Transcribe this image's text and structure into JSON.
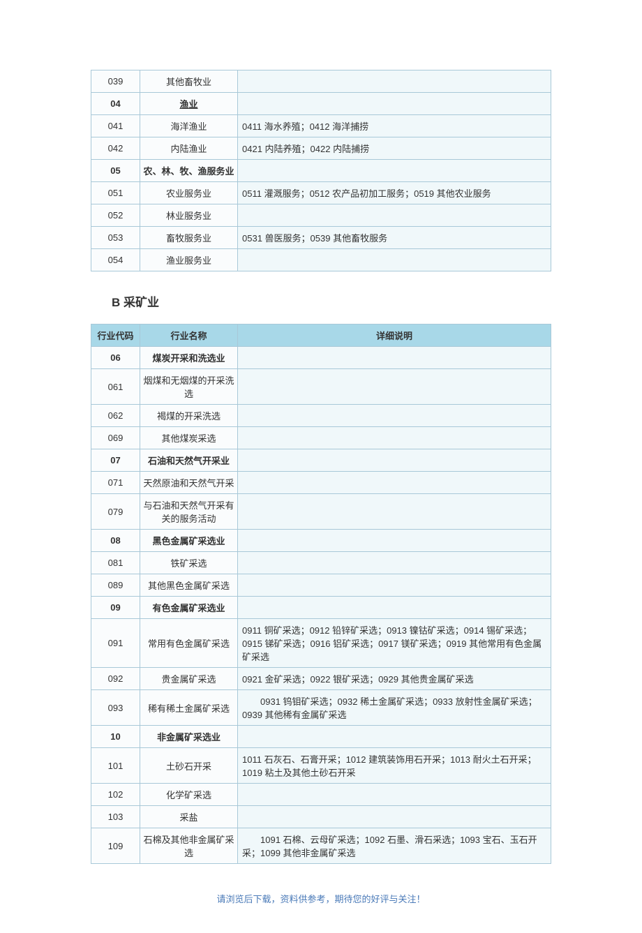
{
  "table1": {
    "rows": [
      {
        "code": "039",
        "name": "其他畜牧业",
        "desc": "",
        "section": false
      },
      {
        "code": "04",
        "name": "渔业",
        "desc": "",
        "section": true,
        "underline": true
      },
      {
        "code": "041",
        "name": "海洋渔业",
        "desc": "0411 海水养殖；0412 海洋捕捞",
        "section": false
      },
      {
        "code": "042",
        "name": "内陆渔业",
        "desc": "0421 内陆养殖；0422 内陆捕捞",
        "section": false
      },
      {
        "code": "05",
        "name": "农、林、牧、渔服务业",
        "desc": "",
        "section": true
      },
      {
        "code": "051",
        "name": "农业服务业",
        "desc": "0511 灌溉服务；0512 农产品初加工服务；0519 其他农业服务",
        "section": false
      },
      {
        "code": "052",
        "name": "林业服务业",
        "desc": "",
        "section": false
      },
      {
        "code": "053",
        "name": "畜牧服务业",
        "desc": "0531 兽医服务；0539 其他畜牧服务",
        "section": false
      },
      {
        "code": "054",
        "name": "渔业服务业",
        "desc": "",
        "section": false
      }
    ]
  },
  "heading_b": "B 采矿业",
  "table2": {
    "headers": {
      "code": "行业代码",
      "name": "行业名称",
      "desc": "详细说明"
    },
    "rows": [
      {
        "code": "06",
        "name": "煤炭开采和洗选业",
        "desc": "",
        "section": true
      },
      {
        "code": "061",
        "name": "烟煤和无烟煤的开采洗选",
        "desc": "",
        "section": false
      },
      {
        "code": "062",
        "name": "褐煤的开采洗选",
        "desc": "",
        "section": false
      },
      {
        "code": "069",
        "name": "其他煤炭采选",
        "desc": "",
        "section": false
      },
      {
        "code": "07",
        "name": "石油和天然气开采业",
        "desc": "",
        "section": true
      },
      {
        "code": "071",
        "name": "天然原油和天然气开采",
        "desc": "",
        "section": false
      },
      {
        "code": "079",
        "name": "与石油和天然气开采有关的服务活动",
        "desc": "",
        "section": false
      },
      {
        "code": "08",
        "name": "黑色金属矿采选业",
        "desc": "",
        "section": true
      },
      {
        "code": "081",
        "name": "铁矿采选",
        "desc": "",
        "section": false
      },
      {
        "code": "089",
        "name": "其他黑色金属矿采选",
        "desc": "",
        "section": false
      },
      {
        "code": "09",
        "name": "有色金属矿采选业",
        "desc": "",
        "section": true
      },
      {
        "code": "091",
        "name": "常用有色金属矿采选",
        "desc": "0911 铜矿采选；0912 铅锌矿采选；0913 镍钴矿采选；0914 锡矿采选；0915 锑矿采选；0916 铝矿采选；0917 镁矿采选；0919 其他常用有色金属矿采选",
        "section": false
      },
      {
        "code": "092",
        "name": "贵金属矿采选",
        "desc": "0921 金矿采选；0922 银矿采选；0929 其他贵金属矿采选",
        "section": false
      },
      {
        "code": "093",
        "name": "稀有稀土金属矿采选",
        "desc": "　　0931 钨钼矿采选；0932 稀土金属矿采选；0933 放射性金属矿采选；0939 其他稀有金属矿采选",
        "section": false
      },
      {
        "code": "10",
        "name": "非金属矿采选业",
        "desc": "",
        "section": true
      },
      {
        "code": "101",
        "name": "土砂石开采",
        "desc": "1011 石灰石、石膏开采；1012 建筑装饰用石开采；1013 耐火土石开采；1019 粘土及其他土砂石开采",
        "section": false
      },
      {
        "code": "102",
        "name": "化学矿采选",
        "desc": "",
        "section": false
      },
      {
        "code": "103",
        "name": "采盐",
        "desc": "",
        "section": false
      },
      {
        "code": "109",
        "name": "石棉及其他非金属矿采选",
        "desc": "　　1091 石棉、云母矿采选；1092 石墨、滑石采选；1093 宝石、玉石开采；1099 其他非金属矿采选",
        "section": false
      }
    ]
  },
  "footer_text": "请浏览后下载，资料供参考，期待您的好评与关注！",
  "colors": {
    "header_bg": "#a8d8e8",
    "border": "#a8c8d8",
    "cell_bg": "#fafcfd",
    "desc_bg": "#f0f8fa",
    "footer_color": "#4a7ab8"
  }
}
